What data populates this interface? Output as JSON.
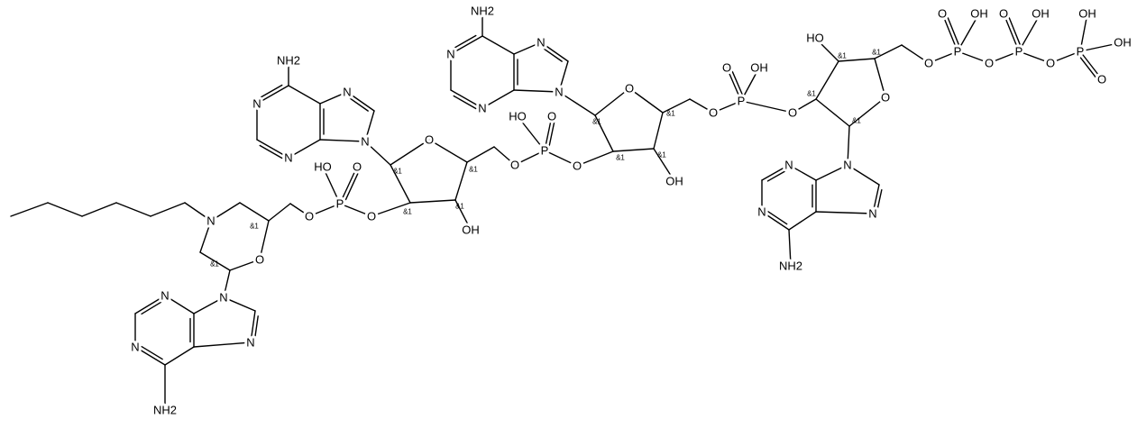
{
  "atom_labels": [
    "NH2",
    "N",
    "N",
    "N",
    "N",
    "NH2",
    "N",
    "N",
    "N",
    "N",
    "NH2",
    "N",
    "N",
    "N",
    "N",
    "NH2",
    "N",
    "N",
    "N",
    "N",
    "N",
    "O",
    "P",
    "HO",
    "O",
    "O",
    "O",
    "O",
    "OH",
    "O",
    "P",
    "HO",
    "O",
    "O",
    "O",
    "OH",
    "O",
    "P",
    "O",
    "OH",
    "O",
    "O",
    "HO",
    "O",
    "P",
    "O",
    "OH",
    "O",
    "P",
    "O",
    "OH",
    "O",
    "P",
    "OH",
    "OH",
    "O"
  ],
  "stereo_labels": [
    "&1",
    "&1",
    "&1",
    "&1",
    "&1",
    "&1",
    "&1",
    "&1",
    "&1",
    "&1",
    "&1",
    "&1",
    "&1",
    "&1"
  ]
}
